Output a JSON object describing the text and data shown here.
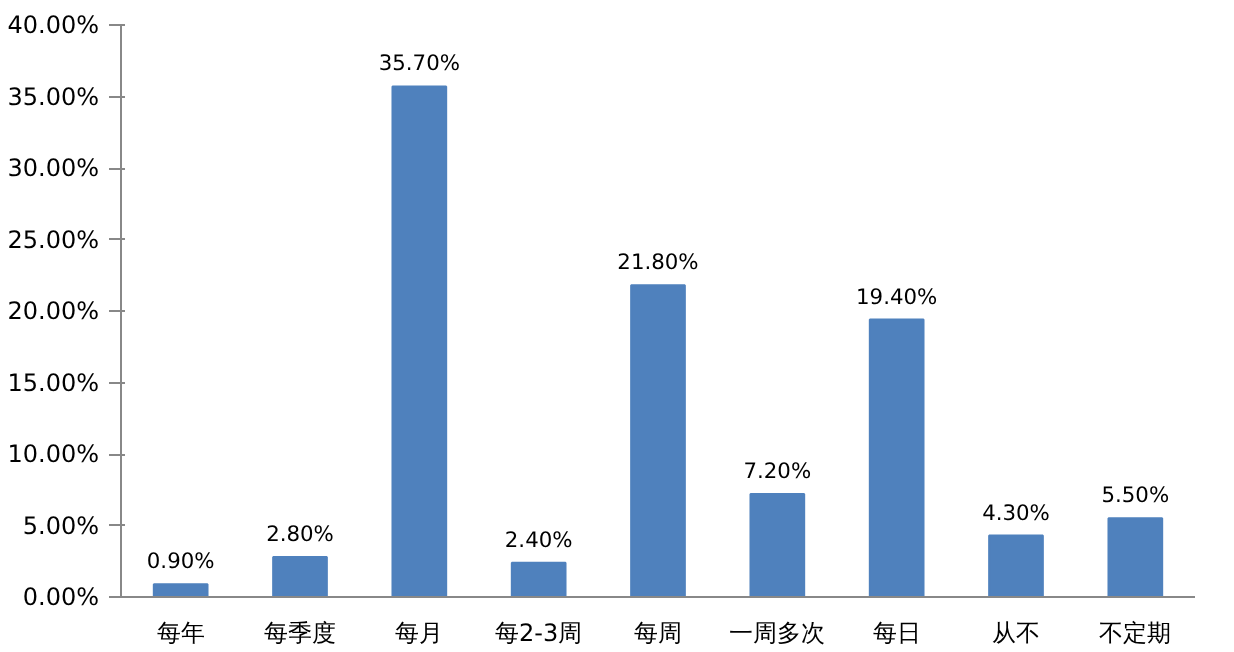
{
  "chart_data": {
    "type": "bar",
    "categories": [
      "每年",
      "每季度",
      "每月",
      "每2-3周",
      "每周",
      "一周多次",
      "每日",
      "从不",
      "不定期"
    ],
    "values": [
      0.9,
      2.8,
      35.7,
      2.4,
      21.8,
      7.2,
      19.4,
      4.3,
      5.5
    ],
    "value_labels": [
      "0.90%",
      "2.80%",
      "35.70%",
      "2.40%",
      "21.80%",
      "7.20%",
      "19.40%",
      "4.30%",
      "5.50%"
    ],
    "color": "#4f81bd",
    "ylim": [
      0,
      40
    ],
    "yticks": [
      {
        "value": 0,
        "label": "0.00%"
      },
      {
        "value": 5,
        "label": "5.00%"
      },
      {
        "value": 10,
        "label": "10.00%"
      },
      {
        "value": 15,
        "label": "15.00%"
      },
      {
        "value": 20,
        "label": "20.00%"
      },
      {
        "value": 25,
        "label": "25.00%"
      },
      {
        "value": 30,
        "label": "30.00%"
      },
      {
        "value": 35,
        "label": "35.00%"
      },
      {
        "value": 40,
        "label": "40.00%"
      }
    ],
    "grid": false
  }
}
